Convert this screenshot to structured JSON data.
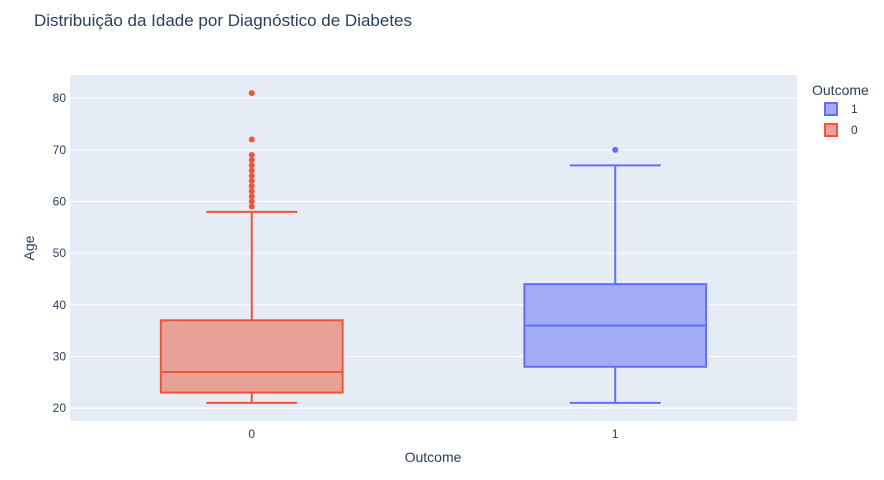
{
  "chart_data": {
    "type": "box",
    "title": "Distribuição da Idade por Diagnóstico de Diabetes",
    "xlabel": "Outcome",
    "ylabel": "Age",
    "categories": [
      "0",
      "1"
    ],
    "ylim": [
      17.5,
      84.5
    ],
    "yticks": [
      20,
      30,
      40,
      50,
      60,
      70,
      80
    ],
    "grid": true,
    "legend": {
      "title": "Outcome",
      "placement": "top-right",
      "entries": [
        "1",
        "0"
      ]
    },
    "series": [
      {
        "name": "0",
        "category": "0",
        "color": "#ef553b",
        "fill": "#e8a196",
        "min": 21,
        "q1": 23,
        "median": 27,
        "q3": 37,
        "max": 58,
        "outliers": [
          59,
          60,
          61,
          62,
          63,
          64,
          65,
          66,
          67,
          68,
          69,
          72,
          81
        ]
      },
      {
        "name": "1",
        "category": "1",
        "color": "#636efa",
        "fill": "#a3adf7",
        "min": 21,
        "q1": 28,
        "median": 36,
        "q3": 44,
        "max": 67,
        "outliers": [
          70
        ]
      }
    ]
  }
}
